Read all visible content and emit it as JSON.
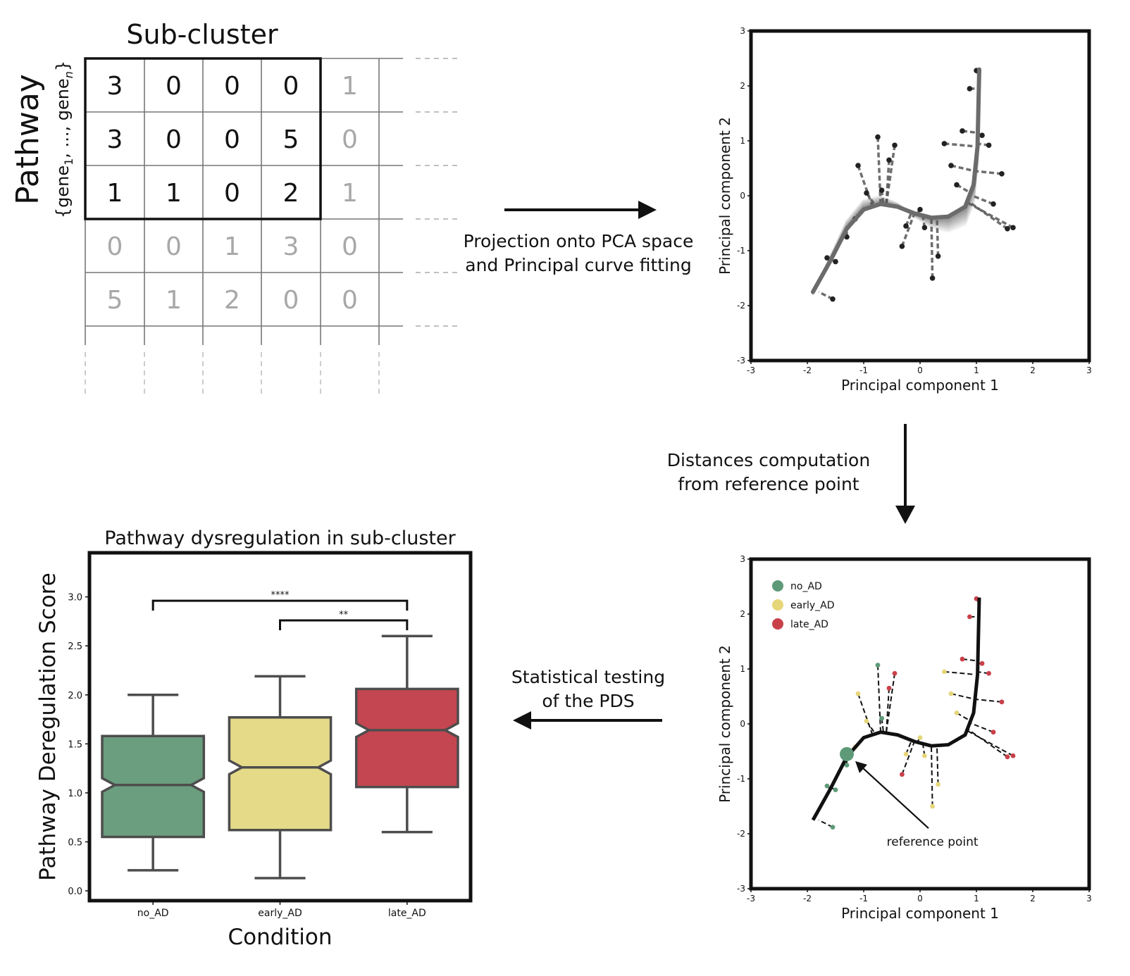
{
  "matrix": {
    "title": "Sub-cluster",
    "row_axis_label": "Pathway",
    "row_axis_sublabel": "{gene",
    "row_axis_sub1": "1",
    "row_axis_mid": ", ..., gene",
    "row_axis_subn": "n",
    "row_axis_close": "}",
    "rows": [
      [
        "3",
        "0",
        "0",
        "0",
        "1"
      ],
      [
        "3",
        "0",
        "0",
        "5",
        "0"
      ],
      [
        "1",
        "1",
        "0",
        "2",
        "1"
      ],
      [
        "0",
        "0",
        "1",
        "3",
        "0"
      ],
      [
        "5",
        "1",
        "2",
        "0",
        "0"
      ]
    ],
    "highlight_rows": 3,
    "highlight_cols": 4
  },
  "steps": {
    "projection_line1": "Projection onto PCA space",
    "projection_line2": "and Principal curve fitting",
    "distances_line1": "Distances computation",
    "distances_line2": "from reference point",
    "testing_line1": "Statistical testing",
    "testing_line2": "of the PDS"
  },
  "pca_plot": {
    "xlabel": "Principal component 1",
    "ylabel": "Principal component 2",
    "xlim": [
      -3,
      3
    ],
    "ylim": [
      -3,
      3
    ],
    "xticks": [
      "-3",
      "-2",
      "-1",
      "0",
      "1",
      "2",
      "3"
    ],
    "yticks": [
      "-3",
      "-2",
      "-1",
      "0",
      "1",
      "2",
      "3"
    ]
  },
  "distance_plot": {
    "xlabel": "Principal component 1",
    "ylabel": "Principal component 2",
    "xticks": [
      "-3",
      "-2",
      "-1",
      "0",
      "1",
      "2",
      "3"
    ],
    "yticks": [
      "-3",
      "-2",
      "-1",
      "0",
      "1",
      "2",
      "3"
    ],
    "legend": [
      {
        "name": "no_AD",
        "color": "#5e9a78"
      },
      {
        "name": "early_AD",
        "color": "#e6d67a"
      },
      {
        "name": "late_AD",
        "color": "#c94049"
      }
    ],
    "annotation": "reference point",
    "reference_point": [
      -1.3,
      -0.55
    ],
    "curve": [
      [
        -1.9,
        -1.75
      ],
      [
        -1.6,
        -1.2
      ],
      [
        -1.3,
        -0.6
      ],
      [
        -1.0,
        -0.25
      ],
      [
        -0.7,
        -0.15
      ],
      [
        -0.4,
        -0.2
      ],
      [
        -0.1,
        -0.32
      ],
      [
        0.2,
        -0.4
      ],
      [
        0.5,
        -0.38
      ],
      [
        0.8,
        -0.2
      ],
      [
        0.95,
        0.2
      ],
      [
        1.02,
        0.9
      ],
      [
        1.05,
        2.3
      ]
    ],
    "points": [
      {
        "x": -1.55,
        "y": -1.88,
        "c": "no_AD",
        "cx": -1.8,
        "cy": -1.75
      },
      {
        "x": -1.65,
        "y": -1.13,
        "c": "no_AD",
        "cx": -1.6,
        "cy": -1.18
      },
      {
        "x": -1.5,
        "y": -1.2,
        "c": "no_AD",
        "cx": -1.6,
        "cy": -1.15
      },
      {
        "x": -1.3,
        "y": -0.75,
        "c": "no_AD",
        "cx": -1.3,
        "cy": -0.6
      },
      {
        "x": -0.75,
        "y": 1.07,
        "c": "no_AD",
        "cx": -0.7,
        "cy": -0.15
      },
      {
        "x": -0.68,
        "y": 0.1,
        "c": "no_AD",
        "cx": -0.65,
        "cy": -0.15
      },
      {
        "x": -1.1,
        "y": 0.55,
        "c": "early_AD",
        "cx": -0.85,
        "cy": -0.18
      },
      {
        "x": -0.95,
        "y": 0.05,
        "c": "early_AD",
        "cx": -0.8,
        "cy": -0.17
      },
      {
        "x": -1.15,
        "y": -0.42,
        "c": "early_AD",
        "cx": -1.15,
        "cy": -0.42
      },
      {
        "x": 0.0,
        "y": -0.25,
        "c": "early_AD",
        "cx": -0.05,
        "cy": -0.33
      },
      {
        "x": -0.25,
        "y": -0.55,
        "c": "early_AD",
        "cx": -0.15,
        "cy": -0.3
      },
      {
        "x": 0.08,
        "y": -0.58,
        "c": "early_AD",
        "cx": 0.05,
        "cy": -0.37
      },
      {
        "x": 0.22,
        "y": -1.5,
        "c": "early_AD",
        "cx": 0.2,
        "cy": -0.4
      },
      {
        "x": 0.32,
        "y": -1.1,
        "c": "early_AD",
        "cx": 0.3,
        "cy": -0.41
      },
      {
        "x": 0.43,
        "y": 0.95,
        "c": "early_AD",
        "cx": 0.96,
        "cy": 0.9
      },
      {
        "x": 0.55,
        "y": 0.55,
        "c": "early_AD",
        "cx": 0.97,
        "cy": 0.45
      },
      {
        "x": 0.65,
        "y": 0.2,
        "c": "early_AD",
        "cx": 0.9,
        "cy": 0.05
      },
      {
        "x": -0.45,
        "y": 0.92,
        "c": "late_AD",
        "cx": -0.6,
        "cy": -0.16
      },
      {
        "x": -0.55,
        "y": 0.65,
        "c": "late_AD",
        "cx": -0.6,
        "cy": -0.16
      },
      {
        "x": -0.32,
        "y": -0.92,
        "c": "late_AD",
        "cx": -0.1,
        "cy": -0.32
      },
      {
        "x": 1.0,
        "y": 2.28,
        "c": "late_AD",
        "cx": 1.04,
        "cy": 2.2
      },
      {
        "x": 0.88,
        "y": 1.95,
        "c": "late_AD",
        "cx": 1.03,
        "cy": 1.95
      },
      {
        "x": 0.75,
        "y": 1.18,
        "c": "late_AD",
        "cx": 1.0,
        "cy": 1.15
      },
      {
        "x": 1.1,
        "y": 1.1,
        "c": "late_AD",
        "cx": 1.01,
        "cy": 1.1
      },
      {
        "x": 1.22,
        "y": 0.92,
        "c": "late_AD",
        "cx": 1.0,
        "cy": 0.95
      },
      {
        "x": 1.45,
        "y": 0.4,
        "c": "late_AD",
        "cx": 0.97,
        "cy": 0.45
      },
      {
        "x": 1.3,
        "y": -0.15,
        "c": "late_AD",
        "cx": 0.88,
        "cy": 0.02
      },
      {
        "x": 1.55,
        "y": -0.6,
        "c": "late_AD",
        "cx": 0.85,
        "cy": -0.1
      },
      {
        "x": 1.65,
        "y": -0.58,
        "c": "late_AD",
        "cx": 0.83,
        "cy": -0.12
      }
    ]
  },
  "boxplot": {
    "title": "Pathway dysregulation in sub-cluster",
    "ylabel": "Pathway Deregulation Score",
    "xlabel": "Condition",
    "yticks": [
      "0.0",
      "0.5",
      "1.0",
      "1.5",
      "2.0",
      "2.5",
      "3.0"
    ]
  },
  "chart_data": {
    "type": "box",
    "title": "Pathway dysregulation in sub-cluster",
    "xlabel": "Condition",
    "ylabel": "Pathway Deregulation Score",
    "ylim": [
      -0.1,
      3.45
    ],
    "categories": [
      "no_AD",
      "early_AD",
      "late_AD"
    ],
    "colors": [
      "#6a9e7f",
      "#e4da88",
      "#c44650"
    ],
    "boxes": [
      {
        "name": "no_AD",
        "whisker_low": 0.21,
        "q1": 0.55,
        "median": 1.08,
        "q3": 1.58,
        "whisker_high": 2.0
      },
      {
        "name": "early_AD",
        "whisker_low": 0.13,
        "q1": 0.62,
        "median": 1.26,
        "q3": 1.77,
        "whisker_high": 2.19
      },
      {
        "name": "late_AD",
        "whisker_low": 0.6,
        "q1": 1.06,
        "median": 1.64,
        "q3": 2.06,
        "whisker_high": 2.6
      }
    ],
    "significance": [
      {
        "from": "no_AD",
        "to": "late_AD",
        "label": "****",
        "y": 2.96
      },
      {
        "from": "early_AD",
        "to": "late_AD",
        "label": "**",
        "y": 2.76
      }
    ]
  }
}
